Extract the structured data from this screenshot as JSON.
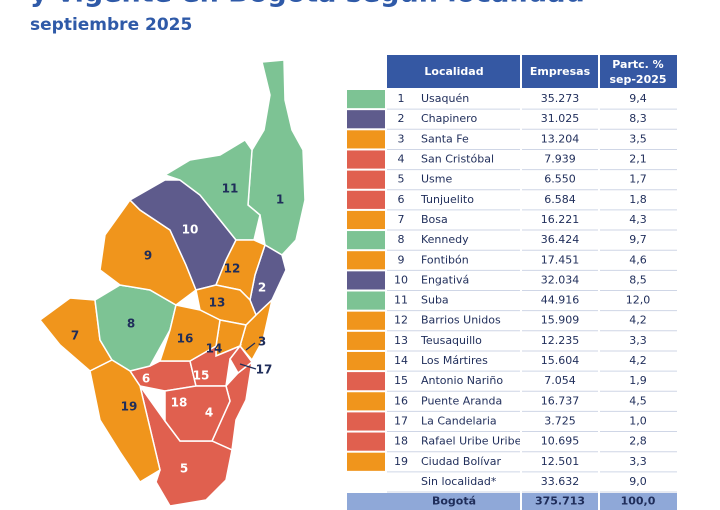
{
  "header": {
    "title": "y vigente en Bogotá según localidad",
    "subtitle": "septiembre 2025"
  },
  "table": {
    "columns": [
      "Localidad",
      "Empresas",
      [
        "Partc. %",
        "sep-2025"
      ]
    ],
    "rows": [
      {
        "number": "1",
        "name": "Usaquén",
        "empresas": "35.273",
        "partc": "9,4",
        "color": "#7dc394"
      },
      {
        "number": "2",
        "name": "Chapinero",
        "empresas": "31.025",
        "partc": "8,3",
        "color": "#5e5b8c"
      },
      {
        "number": "3",
        "name": "Santa Fe",
        "empresas": "13.204",
        "partc": "3,5",
        "color": "#f0951c"
      },
      {
        "number": "4",
        "name": "San Cristóbal",
        "empresas": "7.939",
        "partc": "2,1",
        "color": "#e0604f"
      },
      {
        "number": "5",
        "name": "Usme",
        "empresas": "6.550",
        "partc": "1,7",
        "color": "#e0604f"
      },
      {
        "number": "6",
        "name": "Tunjuelito",
        "empresas": "6.584",
        "partc": "1,8",
        "color": "#e0604f"
      },
      {
        "number": "7",
        "name": "Bosa",
        "empresas": "16.221",
        "partc": "4,3",
        "color": "#f0951c"
      },
      {
        "number": "8",
        "name": "Kennedy",
        "empresas": "36.424",
        "partc": "9,7",
        "color": "#7dc394"
      },
      {
        "number": "9",
        "name": "Fontibón",
        "empresas": "17.451",
        "partc": "4,6",
        "color": "#f0951c"
      },
      {
        "number": "10",
        "name": "Engativá",
        "empresas": "32.034",
        "partc": "8,5",
        "color": "#5e5b8c"
      },
      {
        "number": "11",
        "name": "Suba",
        "empresas": "44.916",
        "partc": "12,0",
        "color": "#7dc394"
      },
      {
        "number": "12",
        "name": "Barrios Unidos",
        "empresas": "15.909",
        "partc": "4,2",
        "color": "#f0951c"
      },
      {
        "number": "13",
        "name": "Teusaquillo",
        "empresas": "12.235",
        "partc": "3,3",
        "color": "#f0951c"
      },
      {
        "number": "14",
        "name": "Los Mártires",
        "empresas": "15.604",
        "partc": "4,2",
        "color": "#f0951c"
      },
      {
        "number": "15",
        "name": "Antonio Nariño",
        "empresas": "7.054",
        "partc": "1,9",
        "color": "#e0604f"
      },
      {
        "number": "16",
        "name": "Puente Aranda",
        "empresas": "16.737",
        "partc": "4,5",
        "color": "#f0951c"
      },
      {
        "number": "17",
        "name": "La Candelaria",
        "empresas": "3.725",
        "partc": "1,0",
        "color": "#e0604f"
      },
      {
        "number": "18",
        "name": "Rafael Uribe Uribe",
        "empresas": "10.695",
        "partc": "2,8",
        "color": "#e0604f"
      },
      {
        "number": "19",
        "name": "Ciudad Bolívar",
        "empresas": "12.501",
        "partc": "3,3",
        "color": "#f0951c"
      },
      {
        "name": "Sin localidad*",
        "empresas": "33.632",
        "partc": "9,0"
      }
    ],
    "total": {
      "name": "Bogotá",
      "empresas": "375.713",
      "partc": "100,0"
    }
  }
}
